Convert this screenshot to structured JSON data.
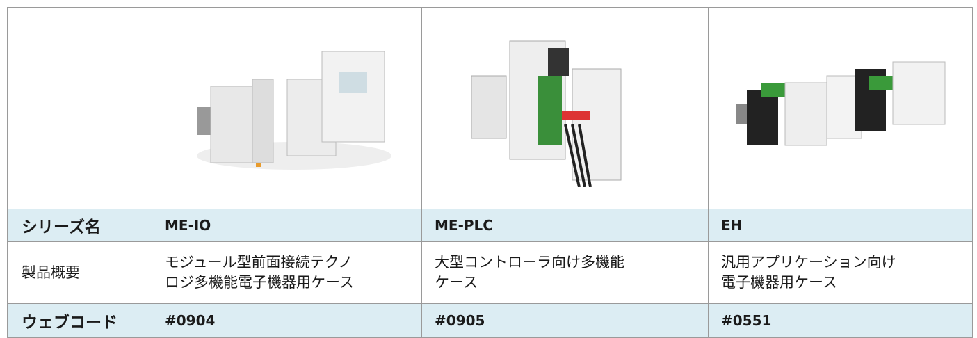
{
  "table": {
    "rows": [
      {
        "label": "シリーズ名",
        "cells": [
          "ME-IO",
          "ME-PLC",
          "EH"
        ]
      },
      {
        "label": "製品概要",
        "cells": [
          [
            "モジュール型前面接続テクノ",
            "ロジ多機能電子機器用ケース"
          ],
          [
            "大型コントローラ向け多機能",
            "ケース"
          ],
          [
            "汎用アプリケーション向け",
            "電子機器用ケース"
          ]
        ]
      },
      {
        "label": "ウェブコード",
        "cells": [
          "#0904",
          "#0905",
          "#0551"
        ]
      }
    ]
  }
}
